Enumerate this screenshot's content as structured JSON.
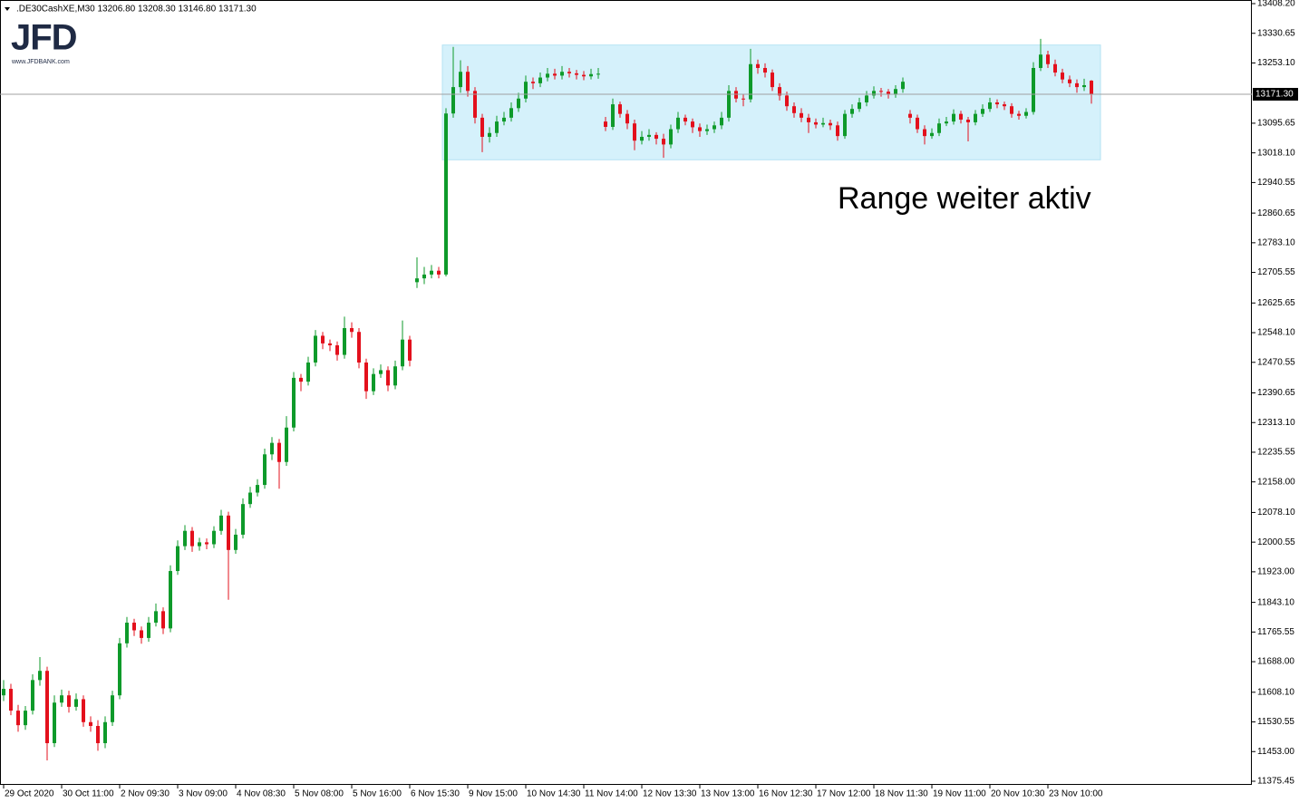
{
  "chart_data": {
    "type": "candlestick",
    "header": ".DE30CashXE,M30  13206.80 13208.30 13146.80 13171.30",
    "logo": {
      "brand": "JFD",
      "url": "www.JFDBANK.com"
    },
    "annotation": "Range weiter aktiv",
    "up_color": "#0e9a2a",
    "down_color": "#e3101c",
    "range_box": {
      "high": 13300,
      "low": 13000,
      "color": "#d5f1fb"
    },
    "bid": {
      "value": 13171.3,
      "label": "13171.30"
    },
    "grid": false,
    "ylim": [
      11375.45,
      13408.2
    ],
    "yticks": [
      {
        "value": 13408.2,
        "label": "13408.20"
      },
      {
        "value": 13330.65,
        "label": "13330.65"
      },
      {
        "value": 13253.1,
        "label": "13253.10"
      },
      {
        "value": 13095.65,
        "label": "13095.65"
      },
      {
        "value": 13018.1,
        "label": "13018.10"
      },
      {
        "value": 12940.55,
        "label": "12940.55"
      },
      {
        "value": 12860.65,
        "label": "12860.65"
      },
      {
        "value": 12783.1,
        "label": "12783.10"
      },
      {
        "value": 12705.55,
        "label": "12705.55"
      },
      {
        "value": 12625.65,
        "label": "12625.65"
      },
      {
        "value": 12548.1,
        "label": "12548.10"
      },
      {
        "value": 12470.55,
        "label": "12470.55"
      },
      {
        "value": 12390.65,
        "label": "12390.65"
      },
      {
        "value": 12313.1,
        "label": "12313.10"
      },
      {
        "value": 12235.55,
        "label": "12235.55"
      },
      {
        "value": 12158,
        "label": "12158.00"
      },
      {
        "value": 12078.1,
        "label": "12078.10"
      },
      {
        "value": 12000.55,
        "label": "12000.55"
      },
      {
        "value": 11923,
        "label": "11923.00"
      },
      {
        "value": 11843.1,
        "label": "11843.10"
      },
      {
        "value": 11765.55,
        "label": "11765.55"
      },
      {
        "value": 11688,
        "label": "11688.00"
      },
      {
        "value": 11608.1,
        "label": "11608.10"
      },
      {
        "value": 11530.55,
        "label": "11530.55"
      },
      {
        "value": 11453,
        "label": "11453.00"
      },
      {
        "value": 11375.45,
        "label": "11375.45"
      }
    ],
    "categories": [
      "29 Oct 2020",
      "30 Oct 11:00",
      "2 Nov 09:30",
      "3 Nov 09:00",
      "4 Nov 08:30",
      "5 Nov 08:00",
      "5 Nov 16:00",
      "6 Nov 15:30",
      "9 Nov 15:00",
      "10 Nov 14:30",
      "11 Nov 14:00",
      "12 Nov 13:30",
      "13 Nov 13:00",
      "16 Nov 12:30",
      "17 Nov 12:00",
      "18 Nov 11:30",
      "19 Nov 11:00",
      "20 Nov 10:30",
      "23 Nov 10:00"
    ],
    "ohlc": [
      [
        11600,
        11640,
        11585,
        11617
      ],
      [
        11617,
        11630,
        11548,
        11560
      ],
      [
        11560,
        11575,
        11505,
        11522
      ],
      [
        11522,
        11572,
        11510,
        11560
      ],
      [
        11560,
        11655,
        11550,
        11640
      ],
      [
        11640,
        11700,
        11625,
        11664
      ],
      [
        11664,
        11675,
        11430,
        11475
      ],
      [
        11475,
        11600,
        11465,
        11581
      ],
      [
        11581,
        11615,
        11570,
        11600
      ],
      [
        11600,
        11612,
        11555,
        11570
      ],
      [
        11570,
        11605,
        11560,
        11590
      ],
      [
        11590,
        11600,
        11518,
        11530
      ],
      [
        11530,
        11545,
        11505,
        11520
      ],
      [
        11520,
        11535,
        11455,
        11475
      ],
      [
        11475,
        11545,
        11462,
        11530
      ],
      [
        11530,
        11612,
        11520,
        11600
      ],
      [
        11600,
        11750,
        11590,
        11736
      ],
      [
        11736,
        11805,
        11725,
        11790
      ],
      [
        11790,
        11800,
        11755,
        11770
      ],
      [
        11770,
        11780,
        11735,
        11750
      ],
      [
        11750,
        11805,
        11740,
        11790
      ],
      [
        11790,
        11840,
        11780,
        11820
      ],
      [
        11820,
        11830,
        11760,
        11775
      ],
      [
        11775,
        11940,
        11765,
        11925
      ],
      [
        11925,
        12005,
        11915,
        11990
      ],
      [
        11990,
        12045,
        11980,
        12030
      ],
      [
        12030,
        12040,
        11975,
        11990
      ],
      [
        11990,
        12012,
        11978,
        12000
      ],
      [
        12000,
        12010,
        11982,
        11995
      ],
      [
        11995,
        12042,
        11985,
        12030
      ],
      [
        12030,
        12085,
        12020,
        12070
      ],
      [
        12070,
        12080,
        11850,
        11980
      ],
      [
        11980,
        12035,
        11970,
        12020
      ],
      [
        12020,
        12115,
        12010,
        12100
      ],
      [
        12100,
        12145,
        12090,
        12130
      ],
      [
        12130,
        12165,
        12120,
        12150
      ],
      [
        12150,
        12245,
        12140,
        12230
      ],
      [
        12230,
        12275,
        12215,
        12260
      ],
      [
        12260,
        12270,
        12140,
        12210
      ],
      [
        12210,
        12330,
        12200,
        12300
      ],
      [
        12300,
        12445,
        12290,
        12430
      ],
      [
        12430,
        12440,
        12395,
        12420
      ],
      [
        12420,
        12485,
        12410,
        12470
      ],
      [
        12470,
        12555,
        12460,
        12540
      ],
      [
        12540,
        12550,
        12505,
        12520
      ],
      [
        12520,
        12530,
        12500,
        12515
      ],
      [
        12515,
        12525,
        12475,
        12490
      ],
      [
        12490,
        12590,
        12480,
        12560
      ],
      [
        12560,
        12575,
        12535,
        12550
      ],
      [
        12550,
        12560,
        12455,
        12470
      ],
      [
        12470,
        12480,
        12375,
        12395
      ],
      [
        12395,
        12455,
        12385,
        12440
      ],
      [
        12440,
        12465,
        12430,
        12450
      ],
      [
        12450,
        12460,
        12395,
        12410
      ],
      [
        12410,
        12475,
        12400,
        12460
      ],
      [
        12460,
        12580,
        12450,
        12530
      ],
      [
        12530,
        12540,
        12460,
        12475
      ],
      [
        12680,
        12745,
        12665,
        12690
      ],
      [
        12690,
        12720,
        12675,
        12700
      ],
      [
        12700,
        12725,
        12690,
        12710
      ],
      [
        12710,
        12720,
        12690,
        12700
      ],
      [
        12700,
        13135,
        12695,
        13121
      ],
      [
        13121,
        13295,
        13110,
        13190
      ],
      [
        13190,
        13260,
        13175,
        13230
      ],
      [
        13230,
        13245,
        13165,
        13180
      ],
      [
        13180,
        13190,
        13095,
        13110
      ],
      [
        13110,
        13120,
        13020,
        13060
      ],
      [
        13060,
        13085,
        13045,
        13070
      ],
      [
        13070,
        13115,
        13060,
        13100
      ],
      [
        13100,
        13125,
        13090,
        13110
      ],
      [
        13110,
        13150,
        13100,
        13135
      ],
      [
        13135,
        13175,
        13125,
        13160
      ],
      [
        13160,
        13220,
        13150,
        13204
      ],
      [
        13204,
        13215,
        13185,
        13200
      ],
      [
        13200,
        13228,
        13190,
        13215
      ],
      [
        13215,
        13240,
        13205,
        13225
      ],
      [
        13225,
        13238,
        13210,
        13220
      ],
      [
        13220,
        13245,
        13210,
        13230
      ],
      [
        13230,
        13240,
        13215,
        13226
      ],
      [
        13226,
        13235,
        13210,
        13222
      ],
      [
        13222,
        13232,
        13208,
        13218
      ],
      [
        13218,
        13238,
        13210,
        13224
      ],
      [
        13224,
        13240,
        13212,
        13225
      ],
      [
        13100,
        13112,
        13075,
        13086
      ],
      [
        13086,
        13160,
        13078,
        13145
      ],
      [
        13145,
        13152,
        13110,
        13120
      ],
      [
        13120,
        13130,
        13080,
        13095
      ],
      [
        13095,
        13105,
        13025,
        13050
      ],
      [
        13050,
        13075,
        13040,
        13060
      ],
      [
        13060,
        13080,
        13050,
        13065
      ],
      [
        13065,
        13072,
        13040,
        13055
      ],
      [
        13055,
        13068,
        13005,
        13040
      ],
      [
        13040,
        13092,
        13030,
        13080
      ],
      [
        13080,
        13125,
        13070,
        13110
      ],
      [
        13110,
        13118,
        13090,
        13100
      ],
      [
        13100,
        13108,
        13070,
        13085
      ],
      [
        13085,
        13095,
        13060,
        13075
      ],
      [
        13075,
        13092,
        13065,
        13080
      ],
      [
        13080,
        13100,
        13070,
        13090
      ],
      [
        13090,
        13125,
        13080,
        13110
      ],
      [
        13110,
        13195,
        13100,
        13180
      ],
      [
        13180,
        13190,
        13150,
        13160
      ],
      [
        13160,
        13170,
        13140,
        13158
      ],
      [
        13158,
        13290,
        13150,
        13250
      ],
      [
        13250,
        13262,
        13225,
        13240
      ],
      [
        13240,
        13252,
        13215,
        13228
      ],
      [
        13228,
        13236,
        13180,
        13190
      ],
      [
        13190,
        13200,
        13155,
        13168
      ],
      [
        13168,
        13178,
        13128,
        13140
      ],
      [
        13140,
        13150,
        13110,
        13122
      ],
      [
        13122,
        13135,
        13098,
        13110
      ],
      [
        13110,
        13120,
        13070,
        13098
      ],
      [
        13098,
        13108,
        13082,
        13092
      ],
      [
        13092,
        13110,
        13085,
        13096
      ],
      [
        13096,
        13105,
        13078,
        13090
      ],
      [
        13090,
        13100,
        13050,
        13062
      ],
      [
        13062,
        13130,
        13055,
        13120
      ],
      [
        13120,
        13145,
        13110,
        13133
      ],
      [
        13133,
        13162,
        13125,
        13150
      ],
      [
        13150,
        13180,
        13140,
        13168
      ],
      [
        13168,
        13192,
        13160,
        13180
      ],
      [
        13180,
        13188,
        13165,
        13178
      ],
      [
        13178,
        13185,
        13160,
        13170
      ],
      [
        13170,
        13195,
        13162,
        13185
      ],
      [
        13185,
        13215,
        13175,
        13204
      ],
      [
        13120,
        13130,
        13095,
        13110
      ],
      [
        13110,
        13118,
        13070,
        13080
      ],
      [
        13080,
        13090,
        13040,
        13062
      ],
      [
        13062,
        13082,
        13055,
        13070
      ],
      [
        13070,
        13108,
        13062,
        13095
      ],
      [
        13095,
        13112,
        13088,
        13100
      ],
      [
        13100,
        13132,
        13092,
        13120
      ],
      [
        13120,
        13128,
        13095,
        13105
      ],
      [
        13105,
        13112,
        13048,
        13098
      ],
      [
        13098,
        13130,
        13090,
        13120
      ],
      [
        13120,
        13145,
        13112,
        13133
      ],
      [
        13133,
        13162,
        13125,
        13150
      ],
      [
        13150,
        13158,
        13135,
        13145
      ],
      [
        13145,
        13152,
        13130,
        13140
      ],
      [
        13140,
        13148,
        13110,
        13120
      ],
      [
        13120,
        13128,
        13105,
        13115
      ],
      [
        13115,
        13135,
        13108,
        13125
      ],
      [
        13125,
        13255,
        13118,
        13240
      ],
      [
        13240,
        13316,
        13232,
        13275
      ],
      [
        13275,
        13285,
        13240,
        13250
      ],
      [
        13250,
        13262,
        13218,
        13228
      ],
      [
        13228,
        13238,
        13200,
        13210
      ],
      [
        13210,
        13220,
        13190,
        13200
      ],
      [
        13200,
        13210,
        13175,
        13190
      ],
      [
        13190,
        13212,
        13180,
        13195
      ],
      [
        13206.8,
        13208.3,
        13146.8,
        13171.3
      ]
    ]
  }
}
